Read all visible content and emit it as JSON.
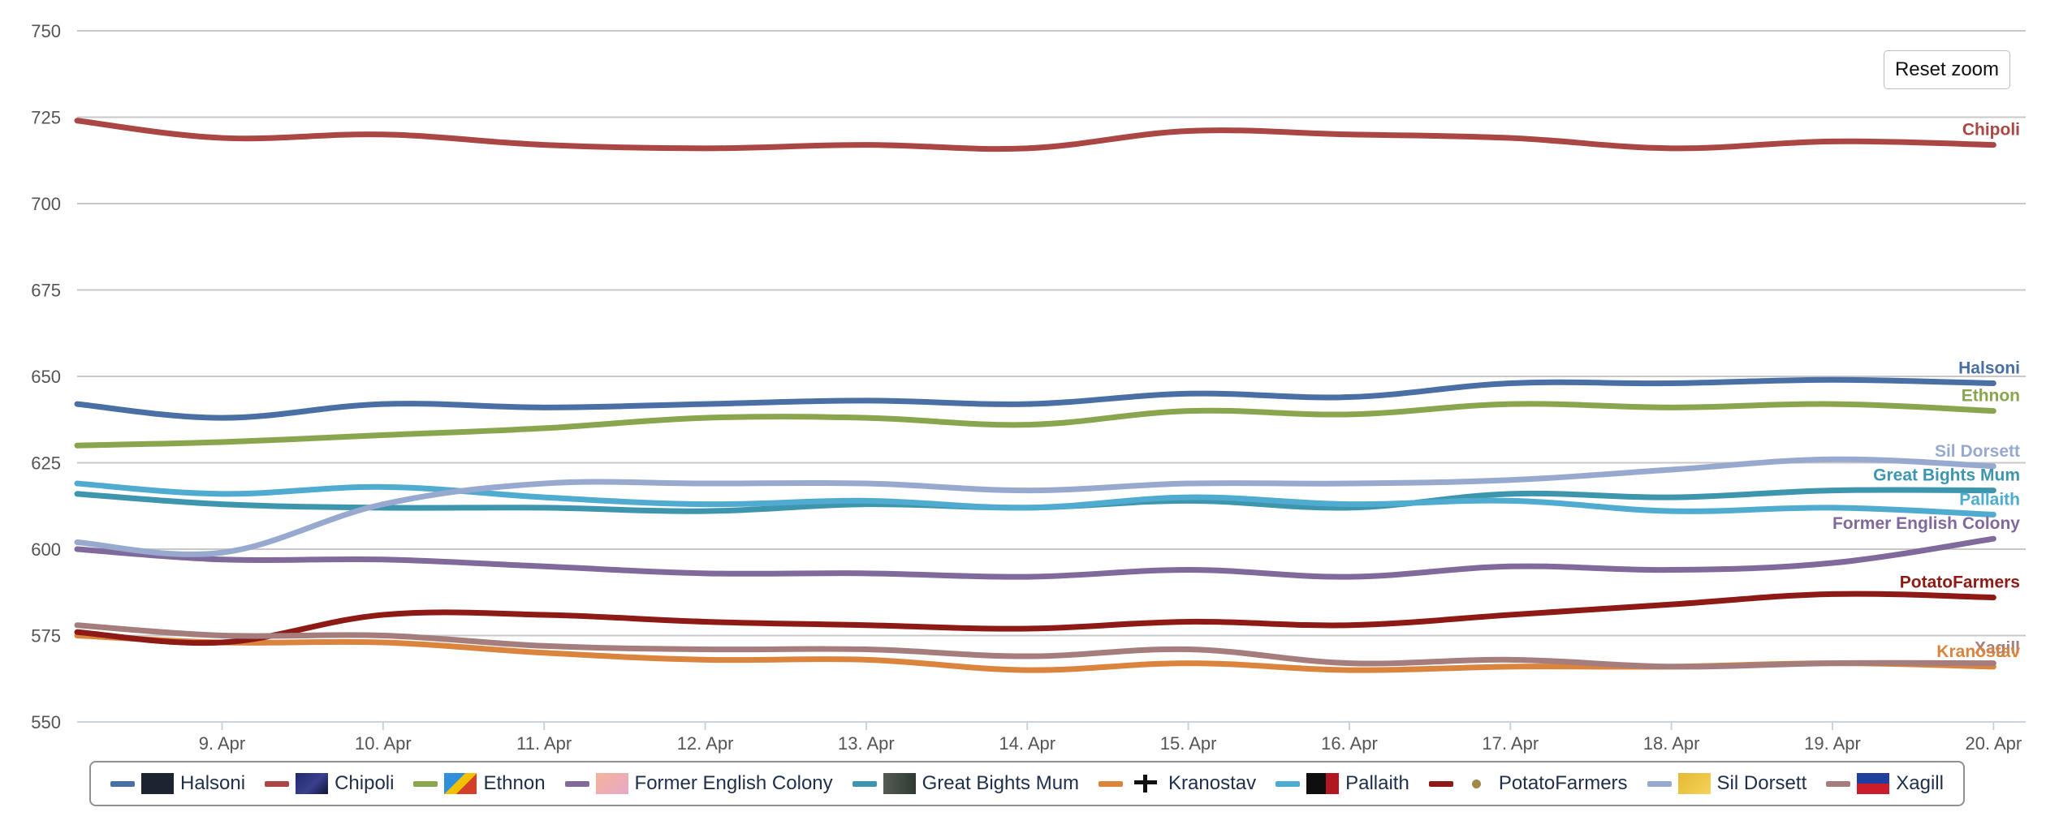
{
  "reset_zoom_label": "Reset zoom",
  "chart_data": {
    "type": "line",
    "title": "",
    "xlabel": "",
    "ylabel": "",
    "ylim": [
      550,
      750
    ],
    "yticks": [
      550,
      575,
      600,
      625,
      650,
      675,
      700,
      725,
      750
    ],
    "x": [
      8.1,
      9,
      10,
      11,
      12,
      13,
      14,
      15,
      16,
      17,
      18,
      19,
      20
    ],
    "xlim": [
      8.1,
      20.2
    ],
    "xticks": [
      {
        "x": 9,
        "label": "9. Apr"
      },
      {
        "x": 10,
        "label": "10. Apr"
      },
      {
        "x": 11,
        "label": "11. Apr"
      },
      {
        "x": 12,
        "label": "12. Apr"
      },
      {
        "x": 13,
        "label": "13. Apr"
      },
      {
        "x": 14,
        "label": "14. Apr"
      },
      {
        "x": 15,
        "label": "15. Apr"
      },
      {
        "x": 16,
        "label": "16. Apr"
      },
      {
        "x": 17,
        "label": "17. Apr"
      },
      {
        "x": 18,
        "label": "18. Apr"
      },
      {
        "x": 19,
        "label": "19. Apr"
      },
      {
        "x": 20,
        "label": "20. Apr"
      }
    ],
    "grid": true,
    "legend": "bottom",
    "series": [
      {
        "name": "Halsoni",
        "color": "#4a6fa5",
        "values": [
          642,
          638,
          642,
          641,
          642,
          643,
          642,
          645,
          644,
          648,
          648,
          649,
          648
        ]
      },
      {
        "name": "Chipoli",
        "color": "#aa4643",
        "values": [
          724,
          719,
          720,
          717,
          716,
          717,
          716,
          721,
          720,
          719,
          716,
          718,
          717
        ]
      },
      {
        "name": "Ethnon",
        "color": "#89a54e",
        "values": [
          630,
          631,
          633,
          635,
          638,
          638,
          636,
          640,
          639,
          642,
          641,
          642,
          640
        ]
      },
      {
        "name": "Former English Colony",
        "color": "#80699b",
        "values": [
          600,
          597,
          597,
          595,
          593,
          593,
          592,
          594,
          592,
          595,
          594,
          596,
          603
        ]
      },
      {
        "name": "Great Bights Mum",
        "color": "#3d96ae",
        "values": [
          616,
          613,
          612,
          612,
          611,
          613,
          612,
          614,
          612,
          616,
          615,
          617,
          617
        ]
      },
      {
        "name": "Kranostav",
        "color": "#db843d",
        "values": [
          575,
          573,
          573,
          570,
          568,
          568,
          565,
          567,
          565,
          566,
          566,
          567,
          566
        ]
      },
      {
        "name": "Pallaith",
        "color": "#4fabcf",
        "values": [
          619,
          616,
          618,
          615,
          613,
          614,
          612,
          615,
          613,
          614,
          611,
          612,
          610
        ]
      },
      {
        "name": "PotatoFarmers",
        "color": "#8e1a16",
        "values": [
          576,
          573,
          581,
          581,
          579,
          578,
          577,
          579,
          578,
          581,
          584,
          587,
          586
        ]
      },
      {
        "name": "Sil Dorsett",
        "color": "#98a9d0",
        "values": [
          602,
          599,
          613,
          619,
          619,
          619,
          617,
          619,
          619,
          620,
          623,
          626,
          624
        ]
      },
      {
        "name": "Xagill",
        "color": "#a47d7c",
        "values": [
          578,
          575,
          575,
          572,
          571,
          571,
          569,
          571,
          567,
          568,
          566,
          567,
          567
        ]
      }
    ],
    "end_labels": [
      {
        "series": "Chipoli",
        "text": "Chipoli"
      },
      {
        "series": "Halsoni",
        "text": "Halsoni"
      },
      {
        "series": "Ethnon",
        "text": "Ethnon"
      },
      {
        "series": "Sil Dorsett",
        "text": "Sil Dorsett"
      },
      {
        "series": "Great Bights Mum",
        "text": "Great Bights Mum"
      },
      {
        "series": "Pallaith",
        "text": "Pallaith"
      },
      {
        "series": "Former English Colony",
        "text": "Former English Colony"
      },
      {
        "series": "PotatoFarmers",
        "text": "PotatoFarmers"
      },
      {
        "series": "Xagill",
        "text": "Xagill"
      },
      {
        "series": "Kranostav",
        "text": "Kranostav"
      }
    ]
  },
  "legend": {
    "items": [
      {
        "label": "Halsoni",
        "color": "#4a6fa5",
        "icon": "halsoni-flag-icon"
      },
      {
        "label": "Chipoli",
        "color": "#aa4643",
        "icon": "chipoli-flag-icon"
      },
      {
        "label": "Ethnon",
        "color": "#89a54e",
        "icon": "ethnon-flag-icon"
      },
      {
        "label": "Former English Colony",
        "color": "#80699b",
        "icon": "former-english-colony-flag-icon"
      },
      {
        "label": "Great Bights Mum",
        "color": "#3d96ae",
        "icon": "great-bights-mum-flag-icon"
      },
      {
        "label": "Kranostav",
        "color": "#db843d",
        "icon": "kranostav-flag-icon"
      },
      {
        "label": "Pallaith",
        "color": "#4fabcf",
        "icon": "pallaith-flag-icon"
      },
      {
        "label": "PotatoFarmers",
        "color": "#8e1a16",
        "icon": "potatofarmers-flag-icon"
      },
      {
        "label": "Sil Dorsett",
        "color": "#98a9d0",
        "icon": "sil-dorsett-flag-icon"
      },
      {
        "label": "Xagill",
        "color": "#a47d7c",
        "icon": "xagill-flag-icon"
      }
    ]
  }
}
